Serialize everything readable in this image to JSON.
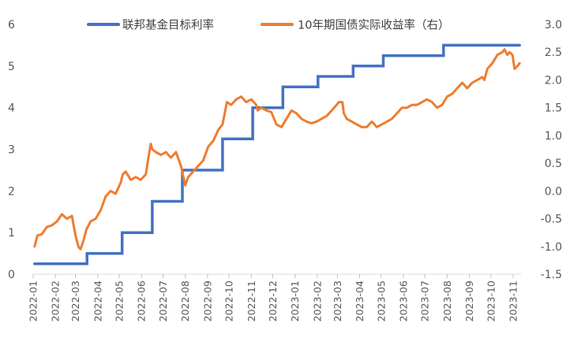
{
  "chart_data": {
    "type": "line",
    "title": "",
    "legend": {
      "placement": "top",
      "entries": [
        "联邦基金目标利率",
        "10年期国债实际收益率（右）"
      ]
    },
    "x_ticks": [
      "2022-01",
      "2022-02",
      "2022-03",
      "2022-04",
      "2022-05",
      "2022-06",
      "2022-07",
      "2022-08",
      "2022-09",
      "2022-10",
      "2022-11",
      "2022-12",
      "2023-01",
      "2023-02",
      "2023-03",
      "2023-04",
      "2023-05",
      "2023-06",
      "2023-07",
      "2023-08",
      "2023-09",
      "2023-10",
      "2023-11"
    ],
    "y_left": {
      "min": 0,
      "max": 6,
      "ticks": [
        "0",
        "1",
        "2",
        "3",
        "4",
        "5",
        "6"
      ]
    },
    "y_right": {
      "min": -1.5,
      "max": 3.0,
      "ticks": [
        "-1.5",
        "-1.0",
        "-0.5",
        "0.0",
        "0.5",
        "1.0",
        "1.5",
        "2.0",
        "2.5",
        "3.0"
      ]
    },
    "colors": {
      "fed_rate": "#4472C4",
      "real_yield": "#ED7D31"
    },
    "series": [
      {
        "name": "联邦基金目标利率",
        "axis": "left",
        "step": true,
        "points": [
          [
            "2022-01-03",
            0.25
          ],
          [
            "2022-03-17",
            0.25
          ],
          [
            "2022-03-17",
            0.5
          ],
          [
            "2022-05-05",
            0.5
          ],
          [
            "2022-05-05",
            1.0
          ],
          [
            "2022-06-16",
            1.0
          ],
          [
            "2022-06-16",
            1.75
          ],
          [
            "2022-07-28",
            1.75
          ],
          [
            "2022-07-28",
            2.5
          ],
          [
            "2022-09-22",
            2.5
          ],
          [
            "2022-09-22",
            3.25
          ],
          [
            "2022-11-03",
            3.25
          ],
          [
            "2022-11-03",
            4.0
          ],
          [
            "2022-12-15",
            4.0
          ],
          [
            "2022-12-15",
            4.5
          ],
          [
            "2023-02-02",
            4.5
          ],
          [
            "2023-02-02",
            4.75
          ],
          [
            "2023-03-23",
            4.75
          ],
          [
            "2023-03-23",
            5.0
          ],
          [
            "2023-05-04",
            5.0
          ],
          [
            "2023-05-04",
            5.25
          ],
          [
            "2023-07-27",
            5.25
          ],
          [
            "2023-07-27",
            5.5
          ],
          [
            "2023-11-10",
            5.5
          ]
        ]
      },
      {
        "name": "10年期国债实际收益率（右）",
        "axis": "right",
        "points": [
          [
            "2022-01-03",
            -1.0
          ],
          [
            "2022-01-07",
            -0.8
          ],
          [
            "2022-01-13",
            -0.78
          ],
          [
            "2022-01-20",
            -0.65
          ],
          [
            "2022-01-27",
            -0.62
          ],
          [
            "2022-02-03",
            -0.55
          ],
          [
            "2022-02-10",
            -0.42
          ],
          [
            "2022-02-17",
            -0.5
          ],
          [
            "2022-02-24",
            -0.45
          ],
          [
            "2022-03-01",
            -0.8
          ],
          [
            "2022-03-05",
            -1.0
          ],
          [
            "2022-03-08",
            -1.05
          ],
          [
            "2022-03-12",
            -0.9
          ],
          [
            "2022-03-16",
            -0.7
          ],
          [
            "2022-03-22",
            -0.55
          ],
          [
            "2022-03-29",
            -0.5
          ],
          [
            "2022-04-05",
            -0.35
          ],
          [
            "2022-04-12",
            -0.1
          ],
          [
            "2022-04-19",
            0.0
          ],
          [
            "2022-04-26",
            -0.05
          ],
          [
            "2022-05-03",
            0.15
          ],
          [
            "2022-05-06",
            0.3
          ],
          [
            "2022-05-10",
            0.35
          ],
          [
            "2022-05-17",
            0.2
          ],
          [
            "2022-05-24",
            0.25
          ],
          [
            "2022-05-31",
            0.2
          ],
          [
            "2022-06-07",
            0.3
          ],
          [
            "2022-06-10",
            0.55
          ],
          [
            "2022-06-14",
            0.85
          ],
          [
            "2022-06-16",
            0.75
          ],
          [
            "2022-06-21",
            0.7
          ],
          [
            "2022-06-28",
            0.65
          ],
          [
            "2022-07-05",
            0.7
          ],
          [
            "2022-07-12",
            0.6
          ],
          [
            "2022-07-19",
            0.7
          ],
          [
            "2022-07-26",
            0.45
          ],
          [
            "2022-08-01",
            0.1
          ],
          [
            "2022-08-05",
            0.25
          ],
          [
            "2022-08-12",
            0.35
          ],
          [
            "2022-08-19",
            0.45
          ],
          [
            "2022-08-26",
            0.55
          ],
          [
            "2022-09-02",
            0.8
          ],
          [
            "2022-09-09",
            0.9
          ],
          [
            "2022-09-16",
            1.1
          ],
          [
            "2022-09-22",
            1.2
          ],
          [
            "2022-09-28",
            1.6
          ],
          [
            "2022-10-04",
            1.55
          ],
          [
            "2022-10-11",
            1.65
          ],
          [
            "2022-10-18",
            1.7
          ],
          [
            "2022-10-25",
            1.6
          ],
          [
            "2022-11-01",
            1.65
          ],
          [
            "2022-11-08",
            1.55
          ],
          [
            "2022-11-10",
            1.45
          ],
          [
            "2022-11-15",
            1.5
          ],
          [
            "2022-11-22",
            1.45
          ],
          [
            "2022-11-29",
            1.42
          ],
          [
            "2022-12-06",
            1.2
          ],
          [
            "2022-12-13",
            1.15
          ],
          [
            "2022-12-20",
            1.3
          ],
          [
            "2022-12-27",
            1.45
          ],
          [
            "2023-01-03",
            1.4
          ],
          [
            "2023-01-10",
            1.3
          ],
          [
            "2023-01-17",
            1.25
          ],
          [
            "2023-01-24",
            1.22
          ],
          [
            "2023-01-31",
            1.25
          ],
          [
            "2023-02-07",
            1.3
          ],
          [
            "2023-02-14",
            1.35
          ],
          [
            "2023-02-21",
            1.45
          ],
          [
            "2023-02-28",
            1.55
          ],
          [
            "2023-03-03",
            1.6
          ],
          [
            "2023-03-08",
            1.6
          ],
          [
            "2023-03-10",
            1.4
          ],
          [
            "2023-03-14",
            1.3
          ],
          [
            "2023-03-21",
            1.25
          ],
          [
            "2023-03-28",
            1.2
          ],
          [
            "2023-04-04",
            1.15
          ],
          [
            "2023-04-11",
            1.15
          ],
          [
            "2023-04-18",
            1.25
          ],
          [
            "2023-04-25",
            1.15
          ],
          [
            "2023-05-02",
            1.2
          ],
          [
            "2023-05-09",
            1.25
          ],
          [
            "2023-05-16",
            1.3
          ],
          [
            "2023-05-23",
            1.4
          ],
          [
            "2023-05-30",
            1.5
          ],
          [
            "2023-06-06",
            1.5
          ],
          [
            "2023-06-13",
            1.55
          ],
          [
            "2023-06-20",
            1.55
          ],
          [
            "2023-06-27",
            1.6
          ],
          [
            "2023-07-04",
            1.65
          ],
          [
            "2023-07-11",
            1.6
          ],
          [
            "2023-07-18",
            1.5
          ],
          [
            "2023-07-25",
            1.55
          ],
          [
            "2023-08-01",
            1.7
          ],
          [
            "2023-08-08",
            1.75
          ],
          [
            "2023-08-15",
            1.85
          ],
          [
            "2023-08-22",
            1.95
          ],
          [
            "2023-08-29",
            1.85
          ],
          [
            "2023-09-05",
            1.95
          ],
          [
            "2023-09-12",
            2.0
          ],
          [
            "2023-09-19",
            2.05
          ],
          [
            "2023-09-22",
            2.0
          ],
          [
            "2023-09-26",
            2.2
          ],
          [
            "2023-10-03",
            2.3
          ],
          [
            "2023-10-10",
            2.45
          ],
          [
            "2023-10-17",
            2.5
          ],
          [
            "2023-10-20",
            2.55
          ],
          [
            "2023-10-24",
            2.45
          ],
          [
            "2023-10-27",
            2.5
          ],
          [
            "2023-10-31",
            2.45
          ],
          [
            "2023-11-03",
            2.2
          ],
          [
            "2023-11-07",
            2.25
          ],
          [
            "2023-11-10",
            2.3
          ]
        ]
      }
    ]
  }
}
